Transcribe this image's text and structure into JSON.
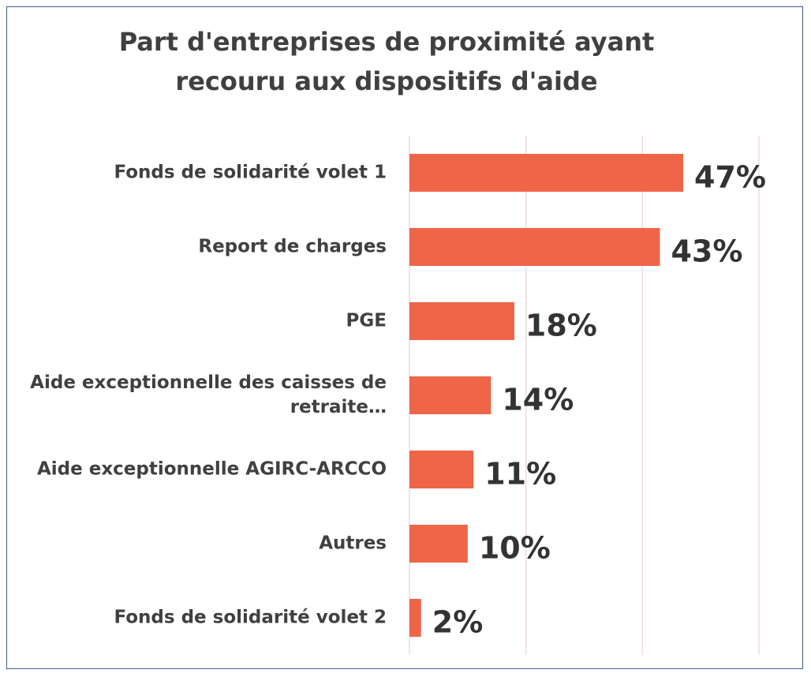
{
  "chart_data": {
    "type": "barh",
    "title": "Part d'entreprises de proximité ayant recouru aux dispositifs d'aide",
    "categories": [
      "Fonds de solidarité volet 1",
      "Report de charges",
      "PGE",
      "Aide exceptionnelle des caisses de retraite…",
      "Aide exceptionnelle AGIRC-ARCCO",
      "Autres",
      "Fonds de solidarité volet 2"
    ],
    "values": [
      47,
      43,
      18,
      14,
      11,
      10,
      2
    ],
    "value_labels": [
      "47%",
      "43%",
      "18%",
      "14%",
      "11%",
      "10%",
      "2%"
    ],
    "color": "#ef6548",
    "xlim": [
      0,
      60
    ],
    "xticks": [
      0,
      20,
      40,
      60
    ],
    "grid": true
  }
}
